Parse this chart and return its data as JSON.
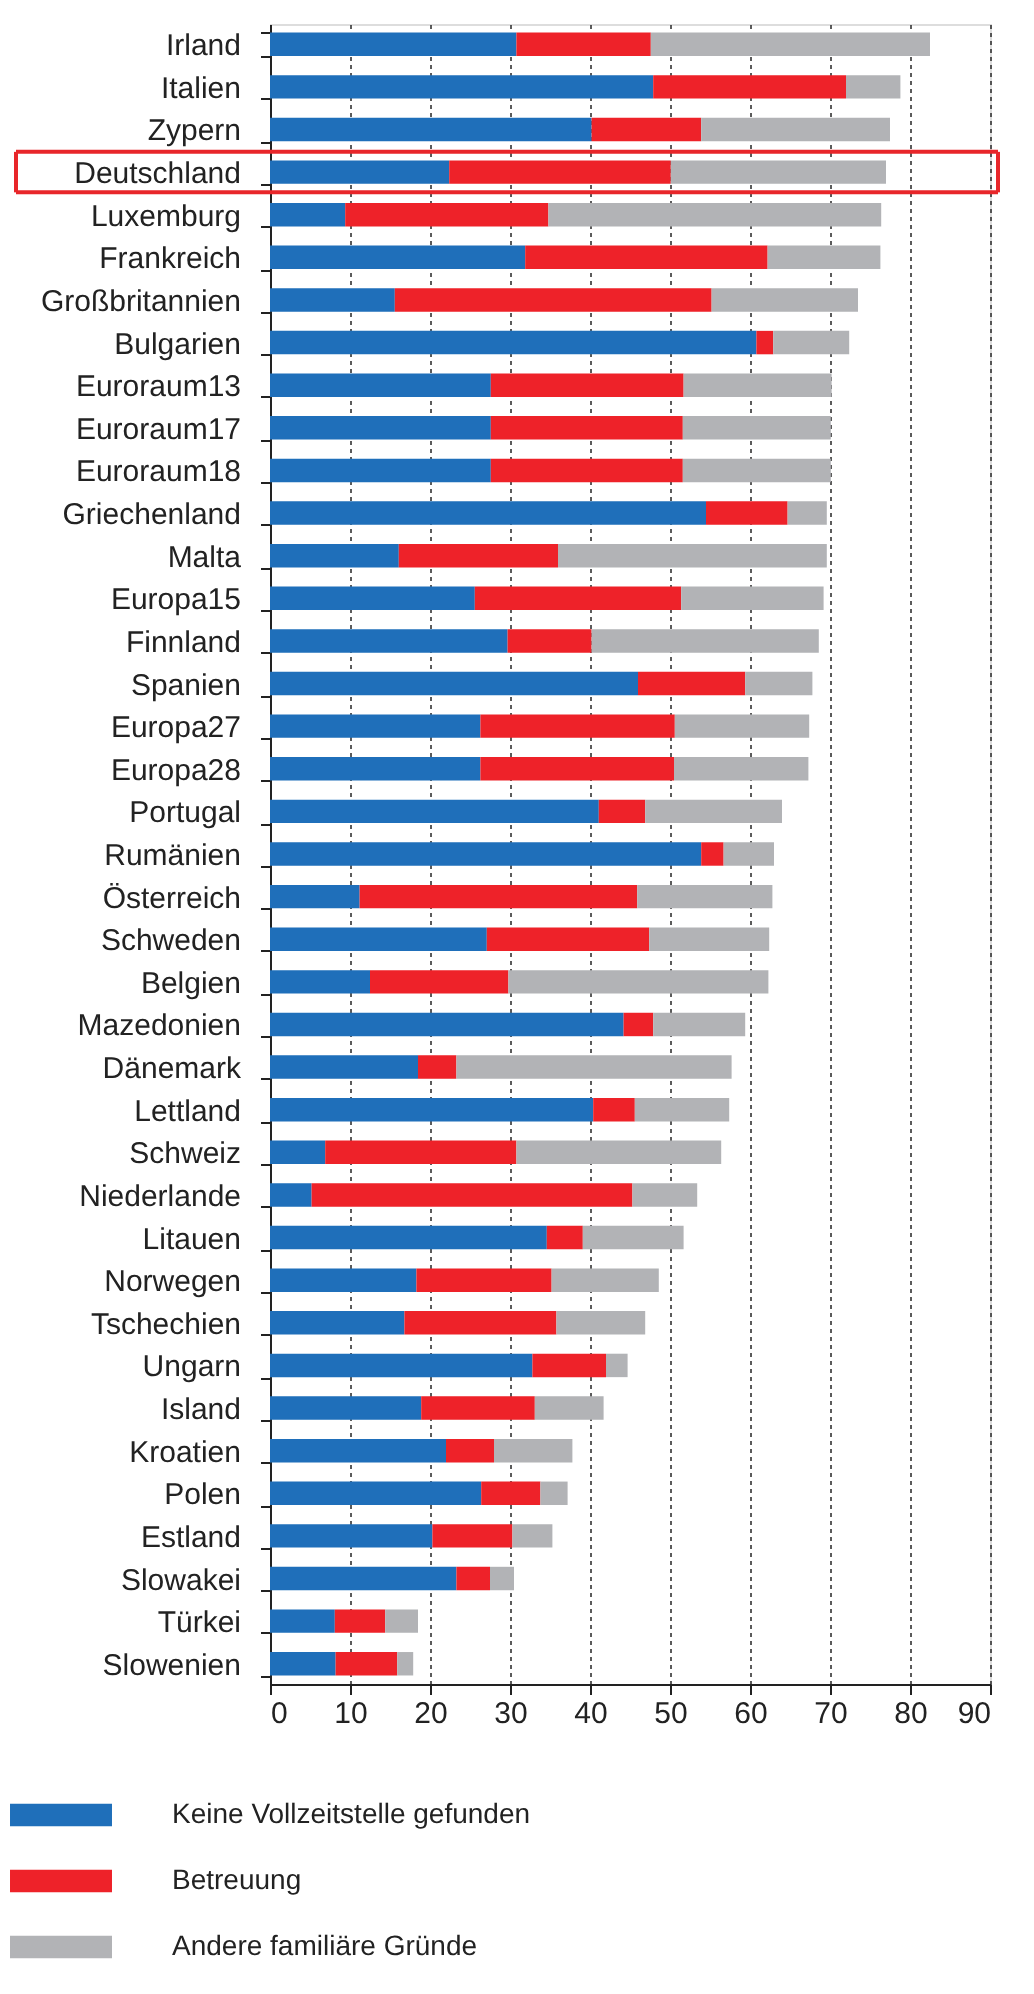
{
  "chart_data": {
    "type": "bar",
    "orientation": "horizontal",
    "stacked": true,
    "categories": [
      "Irland",
      "Italien",
      "Zypern",
      "Deutschland",
      "Luxemburg",
      "Frankreich",
      "Großbritannien",
      "Bulgarien",
      "Euroraum13",
      "Euroraum17",
      "Euroraum18",
      "Griechenland",
      "Malta",
      "Europa15",
      "Finnland",
      "Spanien",
      "Europa27",
      "Europa28",
      "Portugal",
      "Rumänien",
      "Österreich",
      "Schweden",
      "Belgien",
      "Mazedonien",
      "Dänemark",
      "Lettland",
      "Schweiz",
      "Niederlande",
      "Litauen",
      "Norwegen",
      "Tschechien",
      "Ungarn",
      "Island",
      "Kroatien",
      "Polen",
      "Estland",
      "Slowakei",
      "Türkei",
      "Slowenien"
    ],
    "series": [
      {
        "name": "Keine Vollzeitstelle gefunden",
        "color": "#1f6fba",
        "values": [
          30.8,
          47.9,
          40.2,
          22.4,
          9.4,
          31.9,
          15.6,
          60.8,
          27.6,
          27.6,
          27.6,
          54.5,
          16.1,
          25.6,
          29.7,
          46.0,
          26.3,
          26.3,
          41.1,
          53.9,
          11.2,
          27.1,
          12.5,
          44.2,
          18.5,
          40.4,
          6.9,
          5.2,
          34.6,
          18.3,
          16.8,
          32.8,
          18.9,
          22.0,
          26.4,
          20.3,
          23.3,
          8.1,
          8.2
        ]
      },
      {
        "name": "Betreuung",
        "color": "#ee2229",
        "values": [
          16.8,
          24.1,
          13.7,
          27.7,
          25.4,
          30.3,
          39.6,
          2.1,
          24.1,
          24.0,
          24.0,
          10.2,
          19.9,
          25.8,
          10.5,
          13.4,
          24.3,
          24.2,
          5.8,
          2.8,
          34.7,
          20.3,
          17.3,
          3.7,
          4.8,
          5.2,
          23.9,
          40.1,
          4.5,
          16.9,
          19.0,
          9.2,
          14.2,
          6.0,
          7.4,
          10.0,
          4.2,
          6.3,
          7.7
        ]
      },
      {
        "name": "Andere familiäre Gründe",
        "color": "#b2b3b6",
        "values": [
          34.9,
          6.8,
          23.6,
          26.9,
          41.6,
          14.1,
          18.3,
          9.5,
          18.5,
          18.5,
          18.5,
          4.9,
          33.6,
          17.8,
          28.4,
          8.4,
          16.8,
          16.8,
          17.1,
          6.3,
          16.9,
          15.0,
          32.5,
          11.5,
          34.4,
          11.8,
          25.6,
          8.1,
          12.6,
          13.4,
          11.1,
          2.7,
          8.6,
          9.8,
          3.4,
          5.0,
          3.0,
          4.1,
          2.0
        ]
      }
    ],
    "xlim": [
      0,
      90
    ],
    "xticks": [
      0,
      10,
      20,
      30,
      40,
      50,
      60,
      70,
      80,
      90
    ],
    "grid": "x",
    "legend": "bottom"
  }
}
